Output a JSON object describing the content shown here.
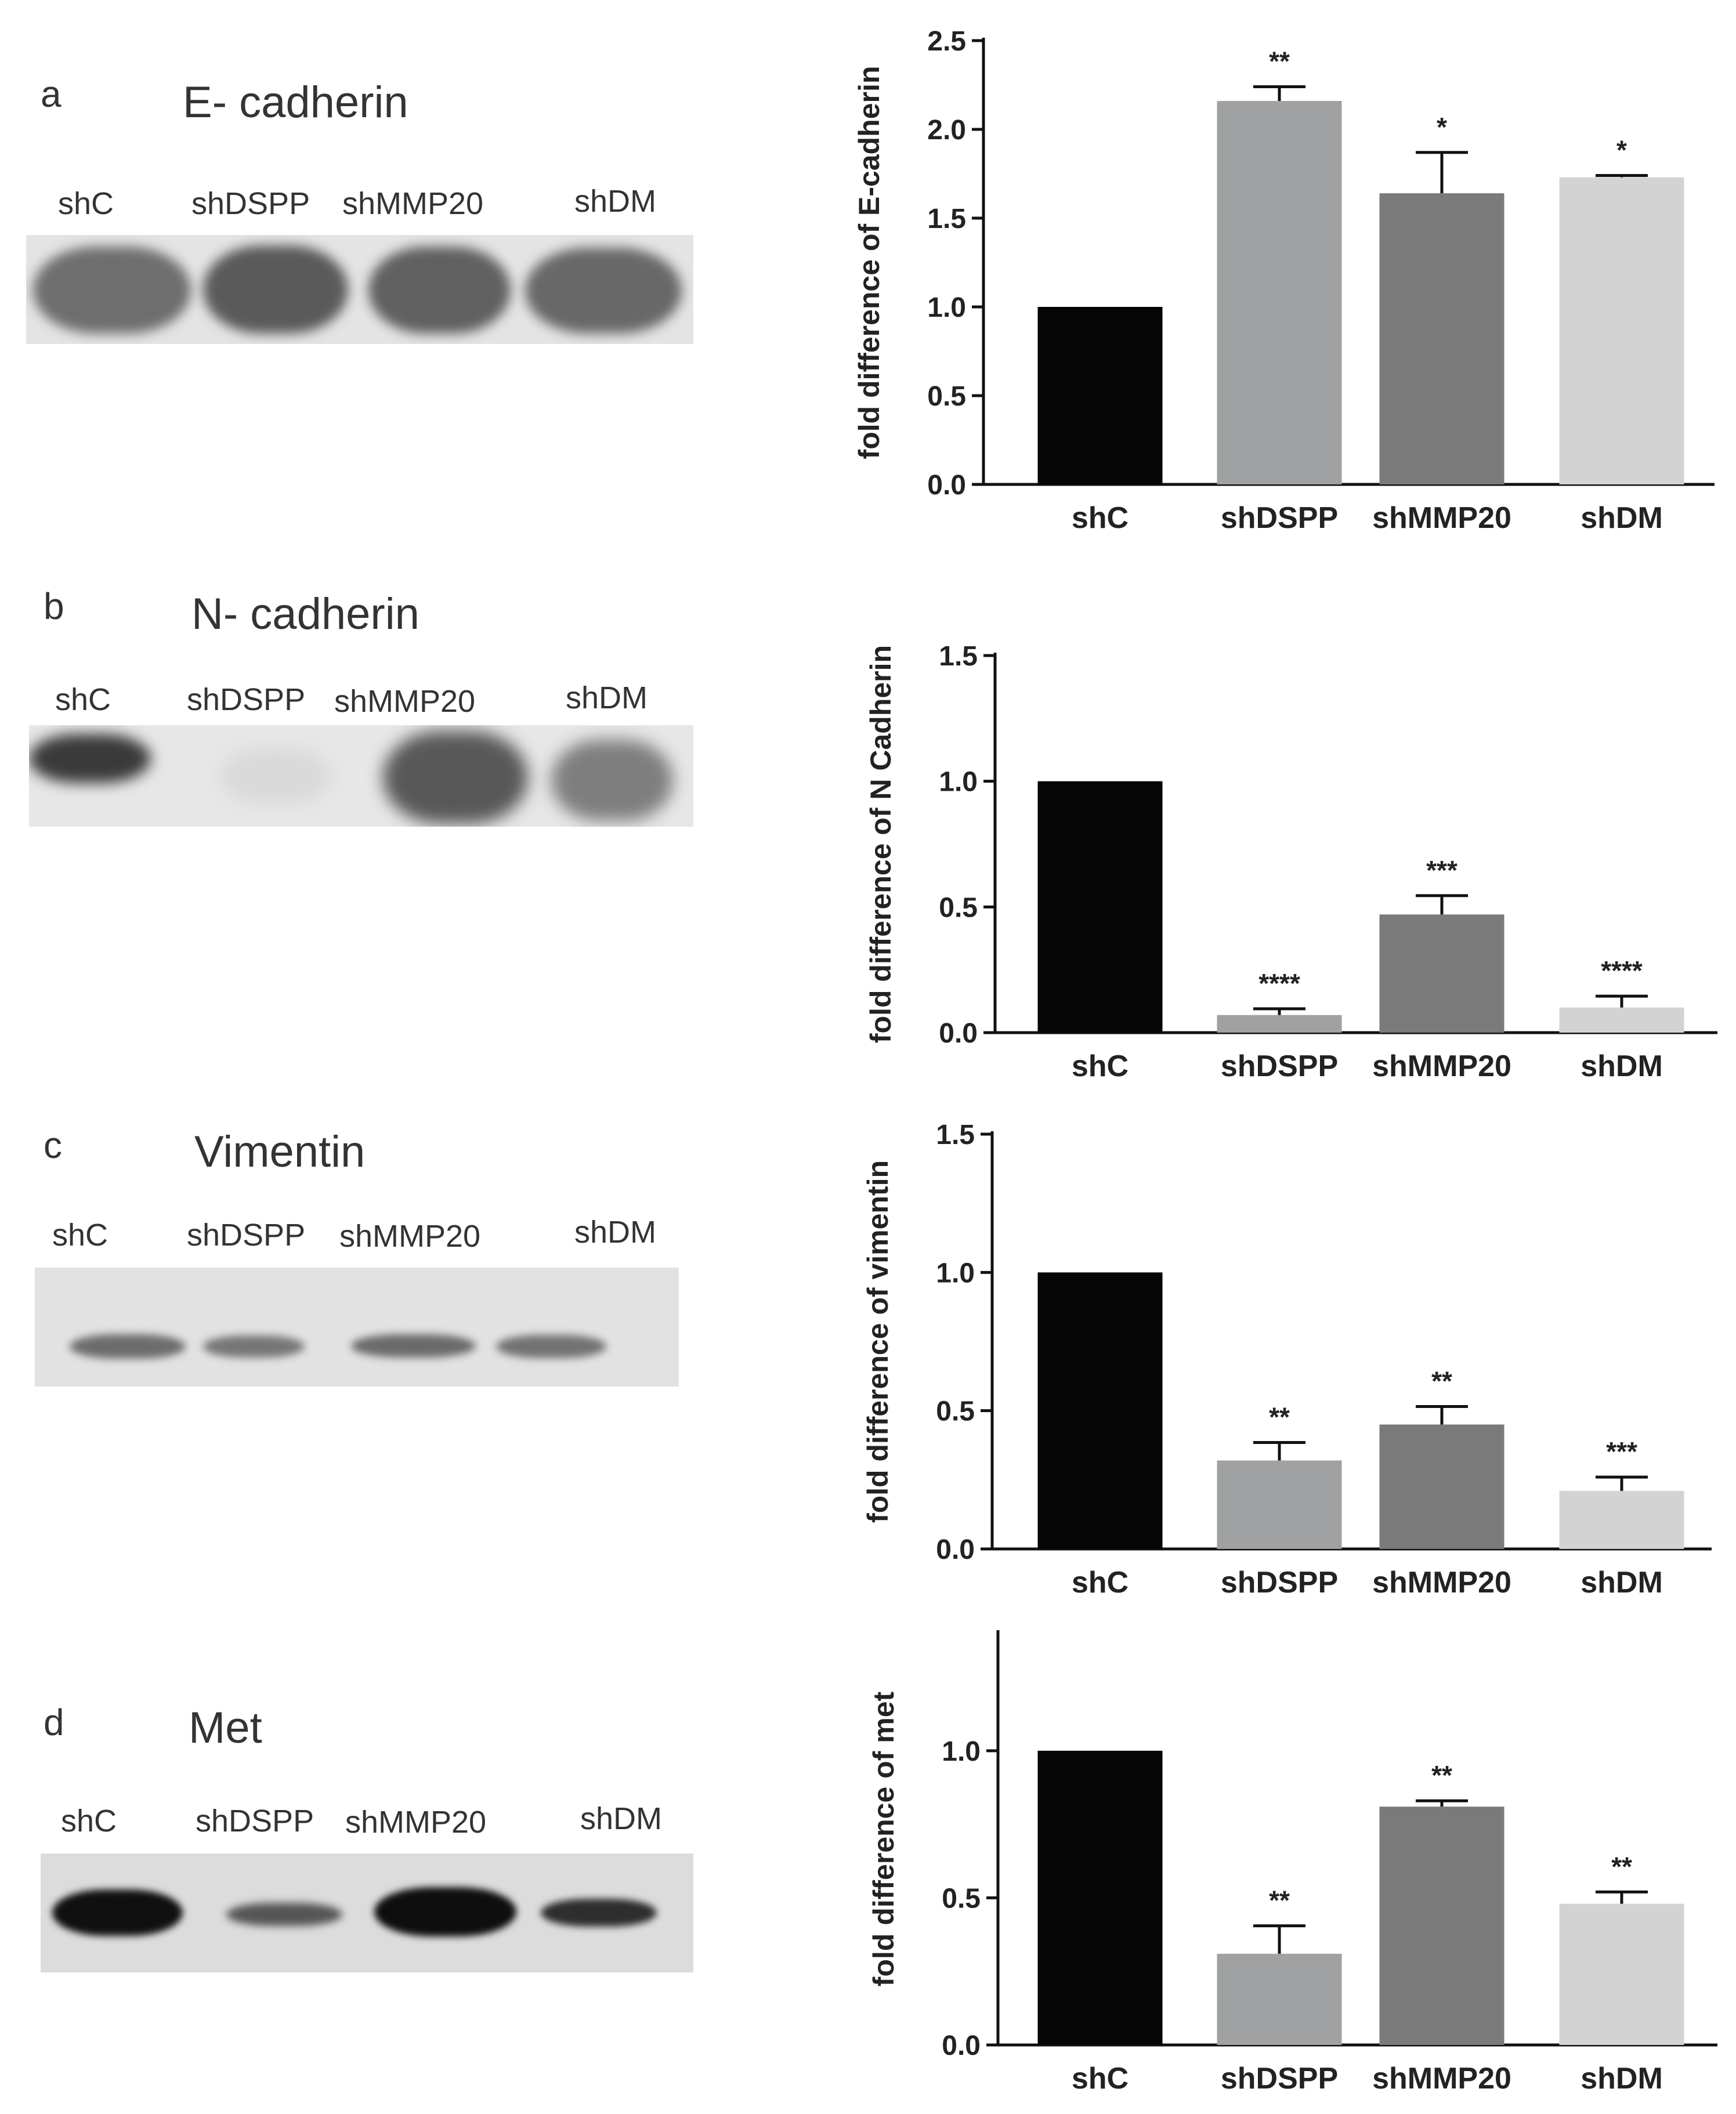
{
  "lanes": [
    "shC",
    "shDSPP",
    "shMMP20",
    "shDM"
  ],
  "panels": [
    {
      "letter": "a",
      "protein": "E- cadherin"
    },
    {
      "letter": "b",
      "protein": "N- cadherin"
    },
    {
      "letter": "c",
      "protein": "Vimentin"
    },
    {
      "letter": "d",
      "protein": "Met"
    }
  ],
  "colors": {
    "shC": "#050505",
    "shDSPP": "#9fa1a3",
    "shMMP20": "#7a7a7a",
    "shDM": "#d3d3d3"
  },
  "chart_data": [
    {
      "type": "bar",
      "categories": [
        "shC",
        "shDSPP",
        "shMMP20",
        "shDM"
      ],
      "values": [
        1.0,
        2.16,
        1.64,
        1.73
      ],
      "errors": [
        0.0,
        0.08,
        0.23,
        0.01
      ],
      "significance": [
        "",
        "**",
        "*",
        "*"
      ],
      "ylabel": "fold difference of E-cadherin",
      "ylim": [
        0,
        2.5
      ],
      "yticks": [
        "0.0",
        "0.5",
        "1.0",
        "1.5",
        "2.0",
        "2.5"
      ]
    },
    {
      "type": "bar",
      "categories": [
        "shC",
        "shDSPP",
        "shMMP20",
        "shDM"
      ],
      "values": [
        1.0,
        0.07,
        0.47,
        0.1
      ],
      "errors": [
        0.0,
        0.025,
        0.075,
        0.045
      ],
      "significance": [
        "",
        "****",
        "***",
        "****"
      ],
      "ylabel": "fold difference of N Cadherin",
      "ylim": [
        0,
        1.5
      ],
      "yticks": [
        "0.0",
        "0.5",
        "1.0",
        "1.5"
      ]
    },
    {
      "type": "bar",
      "categories": [
        "shC",
        "shDSPP",
        "shMMP20",
        "shDM"
      ],
      "values": [
        1.0,
        0.32,
        0.45,
        0.21
      ],
      "errors": [
        0.0,
        0.065,
        0.065,
        0.05
      ],
      "significance": [
        "",
        "**",
        "**",
        "***"
      ],
      "ylabel": "fold difference of vimentin",
      "ylim": [
        0,
        1.5
      ],
      "yticks": [
        "0.0",
        "0.5",
        "1.0",
        "1.5"
      ]
    },
    {
      "type": "bar",
      "categories": [
        "shC",
        "shDSPP",
        "shMMP20",
        "shDM"
      ],
      "values": [
        1.0,
        0.31,
        0.81,
        0.48
      ],
      "errors": [
        0.0,
        0.095,
        0.02,
        0.04
      ],
      "significance": [
        "",
        "**",
        "**",
        "**"
      ],
      "ylabel": "fold difference of met",
      "ylim": [
        0,
        1.4
      ],
      "yticks": [
        "0.0",
        "0.5",
        "1.0"
      ]
    }
  ]
}
